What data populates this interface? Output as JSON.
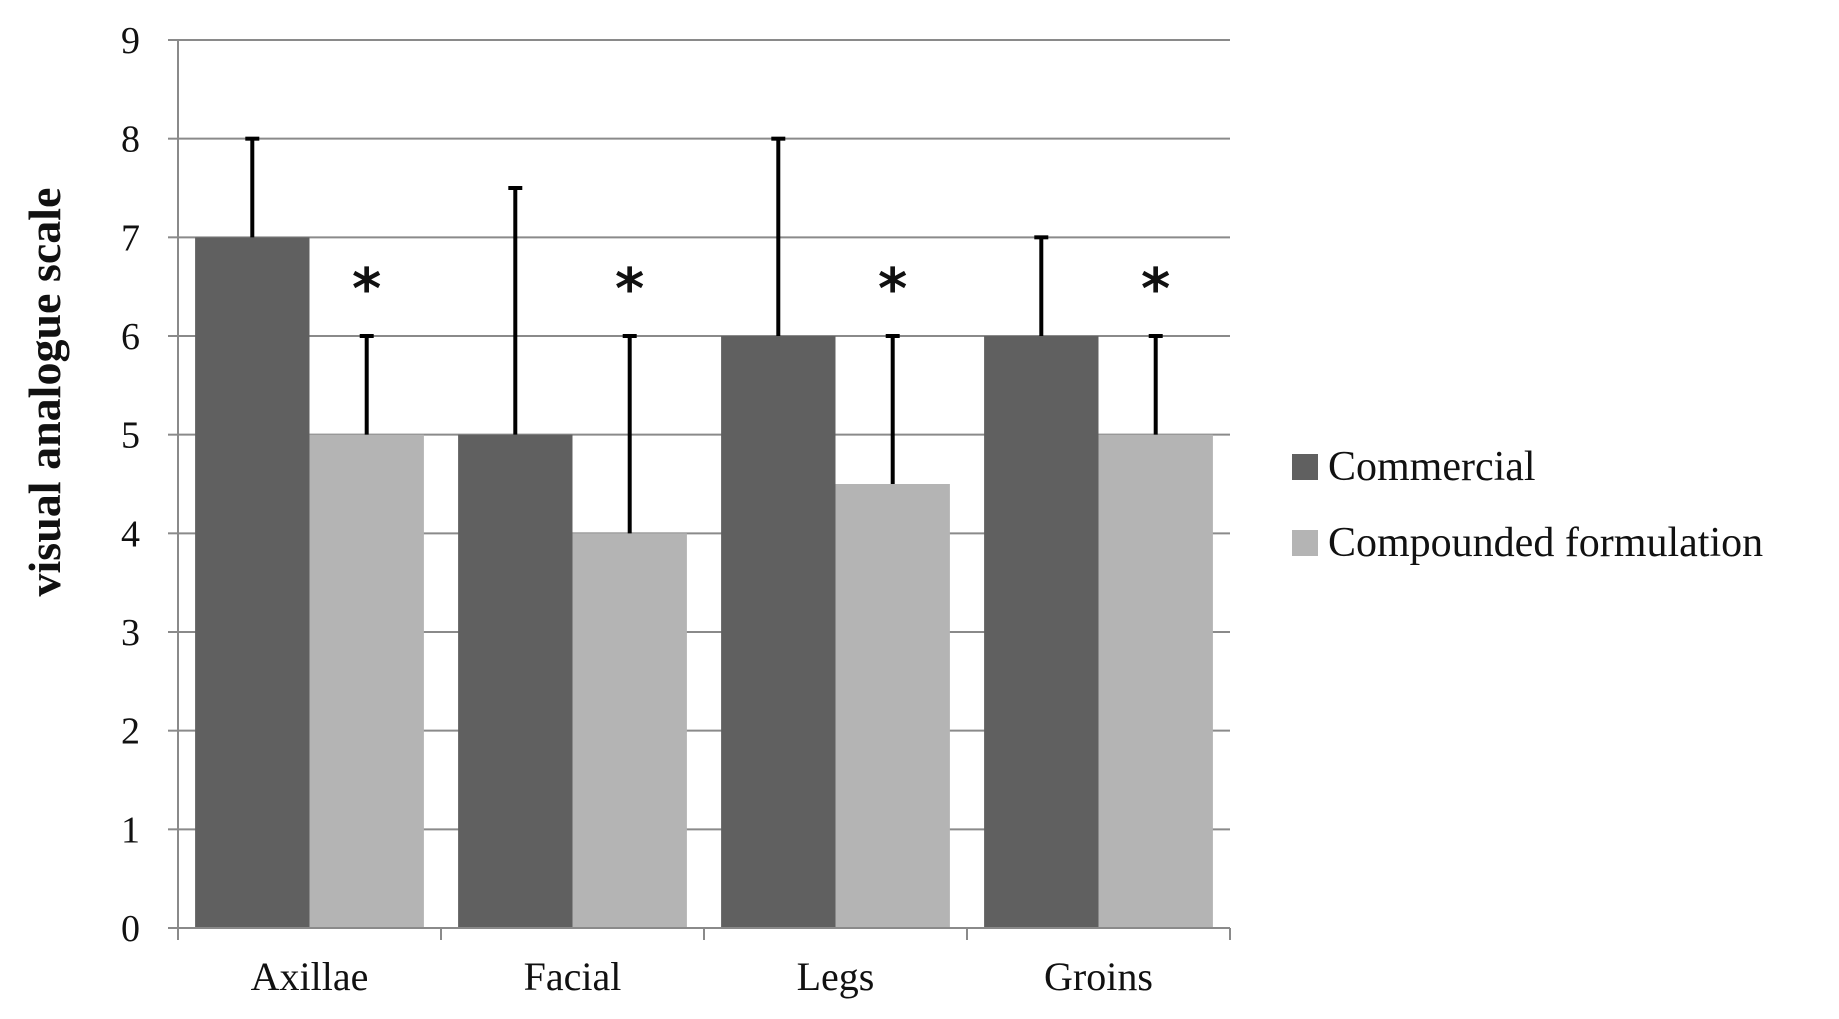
{
  "chart_data": {
    "type": "bar",
    "title": "",
    "xlabel": "",
    "ylabel": "visual analogue scale",
    "ylim": [
      0,
      9
    ],
    "yticks": [
      "0",
      "1",
      "2",
      "3",
      "4",
      "5",
      "6",
      "7",
      "8",
      "9"
    ],
    "grid": true,
    "legend_position": "right",
    "categories": [
      "Axillae",
      "Facial",
      "Legs",
      "Groins"
    ],
    "series": [
      {
        "name": "Commercial",
        "color": "#606060",
        "values": [
          7,
          5,
          6,
          6
        ],
        "error_upper": [
          8,
          7.5,
          8,
          7
        ],
        "significance": [
          "",
          "",
          "",
          ""
        ]
      },
      {
        "name": "Compounded formulation",
        "color": "#b4b4b4",
        "values": [
          5,
          4,
          4.5,
          5
        ],
        "error_upper": [
          6,
          6,
          6,
          6
        ],
        "significance": [
          "*",
          "*",
          "*",
          "*"
        ]
      }
    ]
  }
}
